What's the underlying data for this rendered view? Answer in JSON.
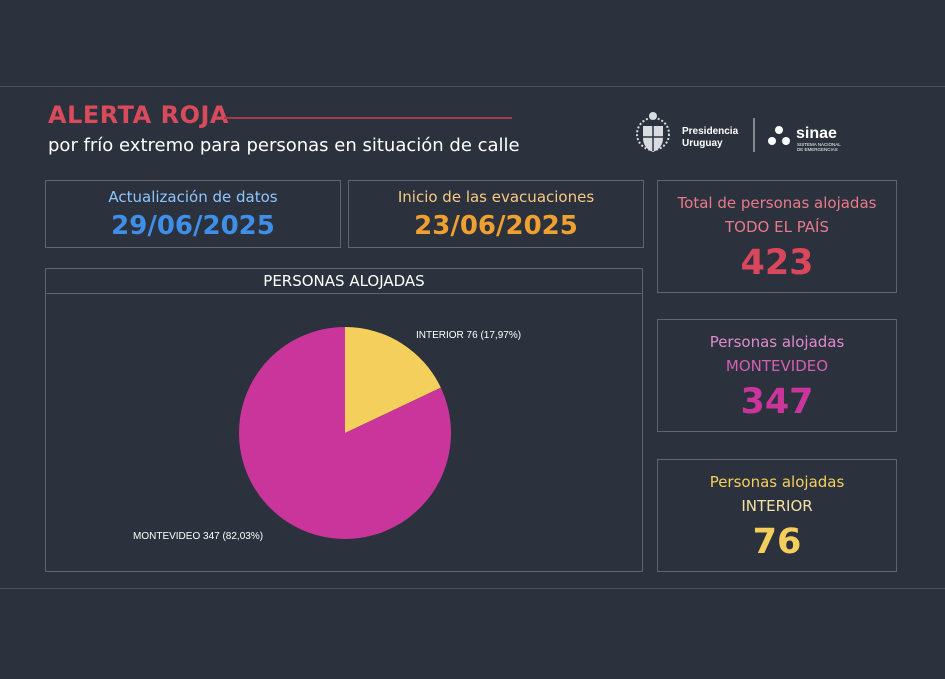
{
  "header": {
    "title": "ALERTA ROJA",
    "subtitle": "por frío extremo para personas en situación de calle"
  },
  "logos": {
    "presidencia_line1": "Presidencia",
    "presidencia_line2": "Uruguay",
    "sinae": "sinae",
    "sinae_tag_line1": "SISTEMA NACIONAL",
    "sinae_tag_line2": "DE EMERGENCIAS"
  },
  "cards": {
    "update": {
      "label": "Actualización de datos",
      "value": "29/06/2025",
      "color": "#3f8fe8"
    },
    "start": {
      "label": "Inicio de las evacuaciones",
      "value": "23/06/2025",
      "color": "#f0a030"
    }
  },
  "kpis": {
    "total": {
      "label": "Total de personas alojadas",
      "sub": "TODO EL PAÍS",
      "value": "423",
      "color": "#d9475c"
    },
    "montevideo": {
      "label": "Personas alojadas",
      "sub": "MONTEVIDEO",
      "value": "347",
      "color": "#c9359a"
    },
    "interior": {
      "label": "Personas alojadas",
      "sub": "INTERIOR",
      "value": "76",
      "color": "#f5cf5c"
    }
  },
  "chart_data": {
    "type": "pie",
    "title": "PERSONAS ALOJADAS",
    "slices": [
      {
        "name": "INTERIOR",
        "value": 76,
        "percent": "17,97%",
        "label": "INTERIOR 76 (17,97%)",
        "color": "#f5cf5c"
      },
      {
        "name": "MONTEVIDEO",
        "value": 347,
        "percent": "82,03%",
        "label": "MONTEVIDEO 347 (82,03%)",
        "color": "#c9359a"
      }
    ],
    "start_angle": "12 o'clock, clockwise"
  }
}
